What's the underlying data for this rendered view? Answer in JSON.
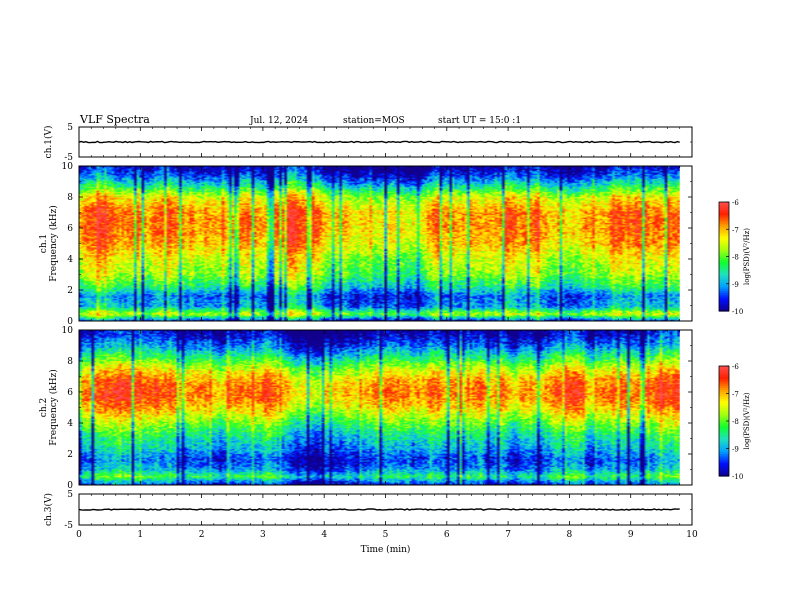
{
  "header": {
    "title": "VLF Spectra",
    "date": "Jul. 12, 2024",
    "station": "station=MOS",
    "start": "start UT = 15:0 :1"
  },
  "colors": {
    "colormap": [
      "#10008c",
      "#0010ff",
      "#00a0ff",
      "#20e0c0",
      "#10ff30",
      "#a0ff10",
      "#ffff00",
      "#ffa000",
      "#ff2000",
      "#ff5050",
      "#ffffff"
    ],
    "background": "#ffffff",
    "ink": "#000000"
  },
  "chart_data": [
    {
      "type": "line",
      "panel": "ch1-waveform",
      "ylabel": "ch.1(V)",
      "xlim": [
        0,
        10
      ],
      "ylim": [
        -5,
        5
      ],
      "yticks": [
        "5",
        "-5"
      ],
      "series": [
        {
          "x": [
            0,
            9.8
          ],
          "values": [
            0,
            0
          ]
        }
      ]
    },
    {
      "type": "heatmap",
      "panel": "ch1-spectrogram",
      "ylabel": "ch.1 Frequency (kHz)",
      "xlim": [
        0,
        10
      ],
      "ylim": [
        0,
        10
      ],
      "data_xlim": [
        0,
        9.8
      ],
      "yticks": [
        "0",
        "2",
        "4",
        "6",
        "8",
        "10"
      ],
      "band_profile_khz": [
        [
          0.0,
          -9.4
        ],
        [
          0.4,
          -7.6
        ],
        [
          0.9,
          -9.0
        ],
        [
          1.6,
          -9.2
        ],
        [
          2.2,
          -8.4
        ],
        [
          3.0,
          -7.8
        ],
        [
          4.0,
          -7.5
        ],
        [
          5.0,
          -7.0
        ],
        [
          6.0,
          -6.8
        ],
        [
          7.0,
          -6.8
        ],
        [
          8.0,
          -7.4
        ],
        [
          8.8,
          -8.6
        ],
        [
          9.4,
          -9.4
        ],
        [
          10.0,
          -9.9
        ]
      ],
      "colorbar": {
        "label": "log(PSD)(V²/Hz)",
        "range": [
          -10,
          -6
        ],
        "ticks": [
          "-6",
          "-7",
          "-8",
          "-9",
          "-10"
        ]
      }
    },
    {
      "type": "heatmap",
      "panel": "ch2-spectrogram",
      "ylabel": "ch.2 Frequency (kHz)",
      "xlim": [
        0,
        10
      ],
      "ylim": [
        0,
        10
      ],
      "data_xlim": [
        0,
        9.8
      ],
      "yticks": [
        "0",
        "2",
        "4",
        "6",
        "8",
        "10"
      ],
      "band_profile_khz": [
        [
          0.0,
          -9.6
        ],
        [
          0.5,
          -8.4
        ],
        [
          1.0,
          -9.2
        ],
        [
          1.6,
          -9.5
        ],
        [
          2.4,
          -9.0
        ],
        [
          3.2,
          -8.6
        ],
        [
          4.0,
          -8.0
        ],
        [
          5.0,
          -7.2
        ],
        [
          5.8,
          -6.8
        ],
        [
          6.6,
          -6.9
        ],
        [
          7.4,
          -7.5
        ],
        [
          8.2,
          -8.4
        ],
        [
          9.0,
          -9.3
        ],
        [
          9.6,
          -9.8
        ],
        [
          10.0,
          -10.0
        ]
      ],
      "colorbar": {
        "label": "log(PSD)(V²/Hz)",
        "range": [
          -10,
          -6
        ],
        "ticks": [
          "-6",
          "-7",
          "-8",
          "-9",
          "-10"
        ]
      }
    },
    {
      "type": "line",
      "panel": "ch3-waveform",
      "ylabel": "ch.3(V)",
      "xlabel": "Time (min)",
      "xlim": [
        0,
        10
      ],
      "ylim": [
        -5,
        5
      ],
      "yticks": [
        "5",
        "-5"
      ],
      "xticks": [
        "0",
        "1",
        "2",
        "3",
        "4",
        "5",
        "6",
        "7",
        "8",
        "9",
        "10"
      ],
      "series": [
        {
          "x": [
            0,
            9.8
          ],
          "values": [
            0,
            0
          ]
        }
      ]
    }
  ]
}
